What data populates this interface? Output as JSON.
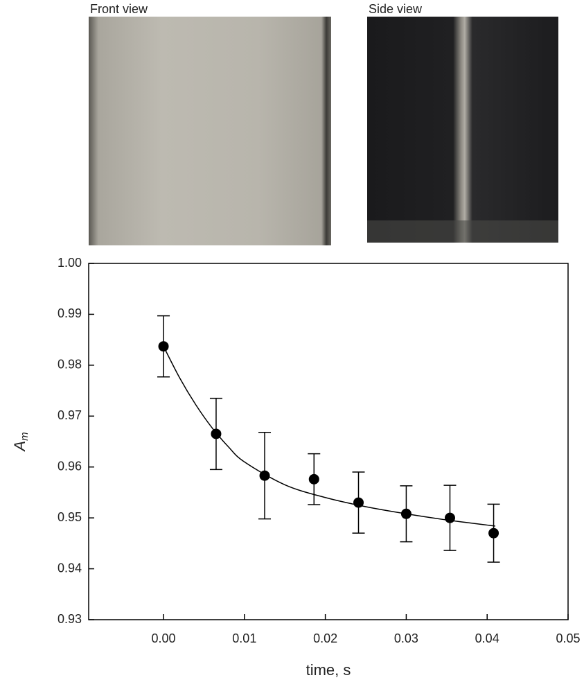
{
  "photos": [
    {
      "label": "Front view"
    },
    {
      "label": "Side view"
    }
  ],
  "chart_data": {
    "type": "scatter",
    "xlabel": "time, s",
    "ylabel": {
      "text": "A",
      "subscript": "m"
    },
    "xlim": [
      -0.00925,
      0.05
    ],
    "ylim": [
      0.93,
      1.0
    ],
    "xticks": [
      {
        "value": 0,
        "label": "0.00"
      },
      {
        "value": 0.01,
        "label": "0.01"
      },
      {
        "value": 0.02,
        "label": "0.02"
      },
      {
        "value": 0.03,
        "label": "0.03"
      },
      {
        "value": 0.04,
        "label": "0.04"
      },
      {
        "value": 0.05,
        "label": "0.05"
      }
    ],
    "yticks": [
      0.93,
      0.94,
      0.95,
      0.96,
      0.97,
      0.98,
      0.99,
      {
        "value": 1.0,
        "label": "1.00"
      }
    ],
    "series": [
      {
        "color": "#000000",
        "x": [
          0,
          0.0065,
          0.0125,
          0.0186,
          0.0241,
          0.03,
          0.0354,
          0.0408
        ],
        "values": [
          0.9837,
          0.9665,
          0.9583,
          0.9576,
          0.953,
          0.9508,
          0.95,
          0.947
        ],
        "errors": [
          0.006,
          0.007,
          0.0085,
          0.005,
          0.006,
          0.0055,
          0.0064,
          0.0057
        ]
      }
    ],
    "fit": {
      "color": "#000000",
      "x": [
        0,
        0.002,
        0.004,
        0.006,
        0.008,
        0.01,
        0.015,
        0.02,
        0.025,
        0.03,
        0.035,
        0.041
      ],
      "values": [
        0.9837,
        0.9775,
        0.9722,
        0.9677,
        0.964,
        0.961,
        0.9565,
        0.954,
        0.9522,
        0.9508,
        0.9496,
        0.9484
      ]
    }
  }
}
